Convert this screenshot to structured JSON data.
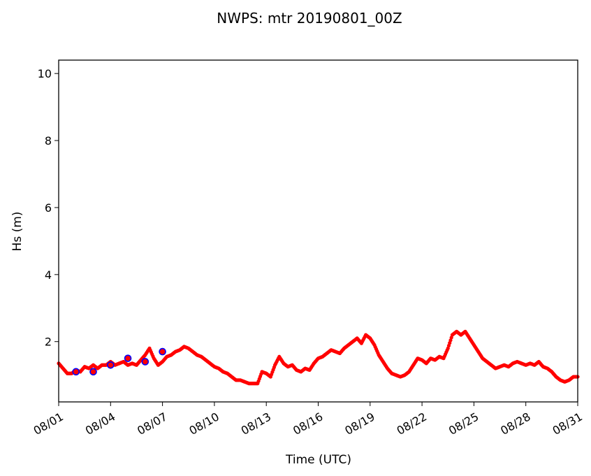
{
  "chart_data": {
    "type": "scatter",
    "title": "NWPS: mtr 20190801_00Z",
    "xlabel": "Time (UTC)",
    "ylabel": "Hs (m)",
    "xlim": [
      0,
      30
    ],
    "ylim": [
      0.2,
      10.4
    ],
    "x_ticks": [
      0,
      3,
      6,
      9,
      12,
      15,
      18,
      21,
      24,
      27,
      30
    ],
    "x_tick_labels": [
      "08/01",
      "08/04",
      "08/07",
      "08/10",
      "08/13",
      "08/16",
      "08/19",
      "08/22",
      "08/25",
      "08/28",
      "08/31"
    ],
    "y_ticks": [
      2,
      4,
      6,
      8,
      10
    ],
    "y_tick_labels": [
      "2",
      "4",
      "6",
      "8",
      "10"
    ],
    "colors": {
      "observed": "#ff0000",
      "forecast_edge": "#0000ff",
      "forecast_fill": "#ff0000"
    },
    "series": [
      {
        "marker": "dot",
        "x": [
          0.0,
          0.25,
          0.5,
          0.75,
          1.0,
          1.25,
          1.5,
          1.75,
          2.0,
          2.25,
          2.5,
          2.75,
          3.0,
          3.25,
          3.5,
          3.75,
          4.0,
          4.25,
          4.5,
          4.75,
          5.0,
          5.25,
          5.5,
          5.75,
          6.0,
          6.25,
          6.5,
          6.75,
          7.0,
          7.25,
          7.5,
          7.75,
          8.0,
          8.25,
          8.5,
          8.75,
          9.0,
          9.25,
          9.5,
          9.75,
          10.0,
          10.25,
          10.5,
          10.75,
          11.0,
          11.25,
          11.5,
          11.75,
          12.0,
          12.25,
          12.5,
          12.75,
          13.0,
          13.25,
          13.5,
          13.75,
          14.0,
          14.25,
          14.5,
          14.75,
          15.0,
          15.25,
          15.5,
          15.75,
          16.0,
          16.25,
          16.5,
          16.75,
          17.0,
          17.25,
          17.5,
          17.75,
          18.0,
          18.25,
          18.5,
          18.75,
          19.0,
          19.25,
          19.5,
          19.75,
          20.0,
          20.25,
          20.5,
          20.75,
          21.0,
          21.25,
          21.5,
          21.75,
          22.0,
          22.25,
          22.5,
          22.75,
          23.0,
          23.25,
          23.5,
          23.75,
          24.0,
          24.25,
          24.5,
          24.75,
          25.0,
          25.25,
          25.5,
          25.75,
          26.0,
          26.25,
          26.5,
          26.75,
          27.0,
          27.25,
          27.5,
          27.75,
          28.0,
          28.25,
          28.5,
          28.75,
          29.0,
          29.25,
          29.5,
          29.75,
          30.0
        ],
        "y": [
          1.35,
          1.2,
          1.05,
          1.05,
          1.15,
          1.1,
          1.25,
          1.2,
          1.3,
          1.2,
          1.3,
          1.3,
          1.4,
          1.3,
          1.35,
          1.4,
          1.3,
          1.35,
          1.3,
          1.45,
          1.6,
          1.8,
          1.5,
          1.3,
          1.4,
          1.55,
          1.6,
          1.7,
          1.75,
          1.85,
          1.8,
          1.7,
          1.6,
          1.55,
          1.45,
          1.35,
          1.25,
          1.2,
          1.1,
          1.05,
          0.95,
          0.85,
          0.85,
          0.8,
          0.75,
          0.75,
          0.75,
          1.1,
          1.05,
          0.95,
          1.3,
          1.55,
          1.35,
          1.25,
          1.3,
          1.15,
          1.1,
          1.2,
          1.15,
          1.35,
          1.5,
          1.55,
          1.65,
          1.75,
          1.7,
          1.65,
          1.8,
          1.9,
          2.0,
          2.1,
          1.95,
          2.2,
          2.1,
          1.9,
          1.6,
          1.4,
          1.2,
          1.05,
          1.0,
          0.95,
          1.0,
          1.1,
          1.3,
          1.5,
          1.45,
          1.35,
          1.5,
          1.45,
          1.55,
          1.5,
          1.8,
          2.2,
          2.3,
          2.2,
          2.3,
          2.1,
          1.9,
          1.7,
          1.5,
          1.4,
          1.3,
          1.2,
          1.25,
          1.3,
          1.25,
          1.35,
          1.4,
          1.35,
          1.3,
          1.35,
          1.3,
          1.4,
          1.25,
          1.2,
          1.1,
          0.95,
          0.85,
          0.8,
          0.85,
          0.95,
          0.95
        ]
      },
      {
        "marker": "circle",
        "x": [
          1.0,
          2.0,
          3.0,
          4.0,
          5.0,
          6.0
        ],
        "y": [
          1.1,
          1.1,
          1.3,
          1.5,
          1.4,
          1.7
        ]
      }
    ]
  }
}
